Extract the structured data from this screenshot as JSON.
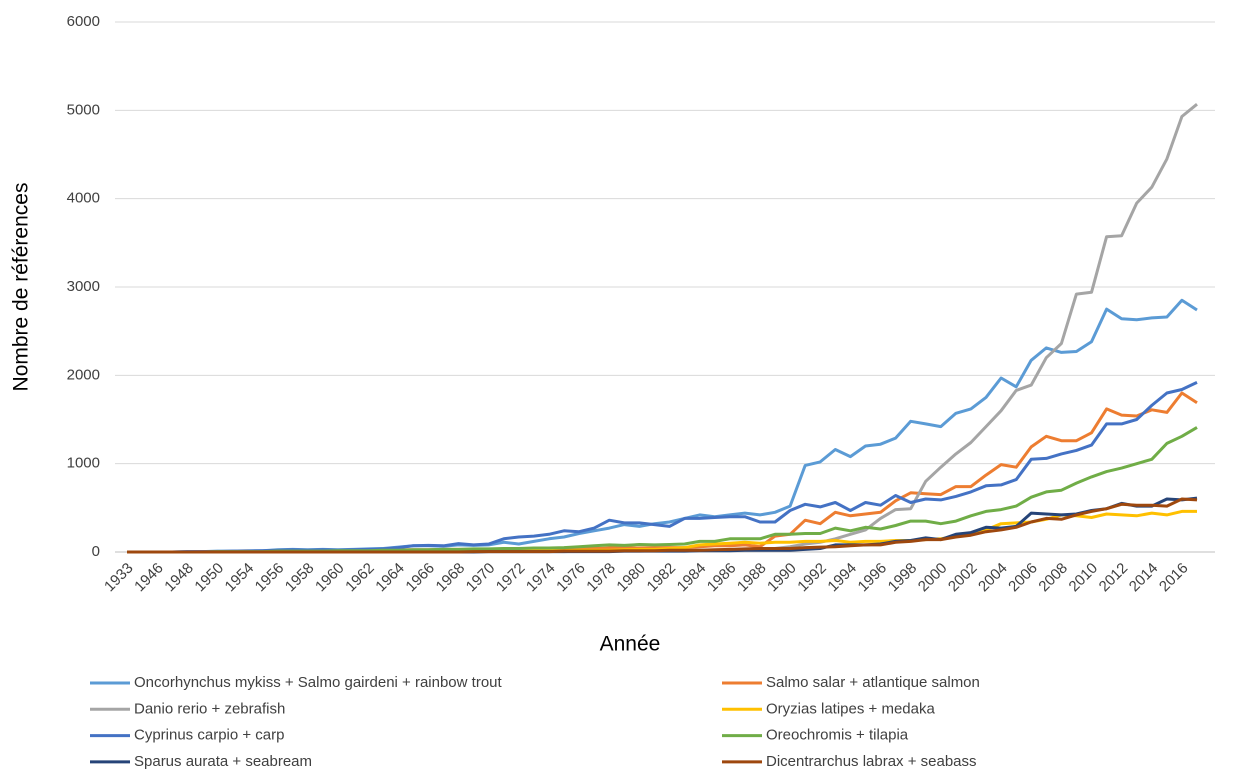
{
  "chart_data": {
    "type": "line",
    "x_label": "Année",
    "y_label": "Nombre de références",
    "categories": [
      "1933",
      null,
      "1946",
      null,
      "1948",
      null,
      "1950",
      null,
      "1954",
      null,
      "1956",
      null,
      "1958",
      null,
      "1960",
      null,
      "1962",
      null,
      "1964",
      null,
      "1966",
      null,
      "1968",
      null,
      "1970",
      null,
      "1972",
      null,
      "1974",
      null,
      "1976",
      null,
      "1978",
      null,
      "1980",
      null,
      "1982",
      null,
      "1984",
      null,
      "1986",
      null,
      "1988",
      null,
      "1990",
      null,
      "1992",
      null,
      "1994",
      null,
      "1996",
      null,
      "1998",
      null,
      "2000",
      null,
      "2002",
      null,
      "2004",
      null,
      "2006",
      null,
      "2008",
      null,
      "2010",
      null,
      "2012",
      null,
      "2014",
      null,
      "2016",
      null
    ],
    "series": [
      {
        "name": "Oncorhynchus mykiss + Salmo gairdeni + rainbow trout",
        "color": "#5b9bd5",
        "values": [
          0,
          0,
          0,
          0,
          5,
          5,
          10,
          10,
          15,
          15,
          25,
          30,
          25,
          30,
          25,
          30,
          35,
          40,
          55,
          70,
          70,
          65,
          80,
          75,
          80,
          110,
          90,
          120,
          150,
          170,
          210,
          240,
          270,
          310,
          290,
          320,
          340,
          380,
          420,
          400,
          420,
          440,
          420,
          450,
          520,
          980,
          1020,
          1160,
          1080,
          1200,
          1220,
          1290,
          1480,
          1450,
          1420,
          1570,
          1620,
          1750,
          1970,
          1870,
          2170,
          2310,
          2260,
          2270,
          2380,
          2750,
          2640,
          2630,
          2650,
          2660,
          2850,
          2740
        ]
      },
      {
        "name": "Salmo salar + atlantique salmon",
        "color": "#ed7d31",
        "values": [
          0,
          0,
          0,
          0,
          0,
          5,
          5,
          5,
          10,
          10,
          10,
          10,
          15,
          15,
          15,
          20,
          20,
          20,
          25,
          25,
          25,
          30,
          30,
          30,
          30,
          35,
          35,
          35,
          35,
          40,
          40,
          40,
          45,
          45,
          45,
          50,
          50,
          50,
          60,
          70,
          70,
          80,
          60,
          180,
          200,
          360,
          320,
          450,
          410,
          430,
          450,
          580,
          670,
          660,
          650,
          740,
          740,
          870,
          990,
          960,
          1190,
          1310,
          1260,
          1260,
          1350,
          1620,
          1550,
          1540,
          1610,
          1580,
          1800,
          1690
        ]
      },
      {
        "name": "Danio rerio + zebrafish",
        "color": "#a5a5a5",
        "values": [
          0,
          0,
          0,
          0,
          0,
          0,
          0,
          0,
          0,
          0,
          0,
          0,
          0,
          0,
          0,
          0,
          0,
          0,
          0,
          0,
          5,
          5,
          5,
          5,
          5,
          5,
          5,
          5,
          5,
          5,
          10,
          10,
          10,
          10,
          10,
          15,
          15,
          15,
          20,
          20,
          20,
          25,
          30,
          40,
          60,
          90,
          110,
          150,
          200,
          250,
          380,
          480,
          490,
          800,
          960,
          1110,
          1240,
          1420,
          1600,
          1830,
          1890,
          2200,
          2360,
          2920,
          2940,
          3570,
          3580,
          3950,
          4130,
          4450,
          4930,
          5070
        ]
      },
      {
        "name": "Oryzias latipes + medaka",
        "color": "#ffc000",
        "values": [
          0,
          0,
          0,
          0,
          0,
          0,
          0,
          0,
          0,
          0,
          0,
          0,
          0,
          0,
          0,
          5,
          5,
          5,
          5,
          5,
          5,
          5,
          10,
          10,
          10,
          10,
          10,
          15,
          15,
          15,
          20,
          20,
          20,
          25,
          30,
          30,
          40,
          50,
          80,
          90,
          100,
          110,
          100,
          110,
          110,
          120,
          120,
          130,
          110,
          120,
          120,
          130,
          130,
          140,
          150,
          180,
          200,
          250,
          320,
          330,
          340,
          370,
          420,
          410,
          390,
          430,
          420,
          410,
          440,
          420,
          460,
          460
        ]
      },
      {
        "name": "Cyprinus carpio + carp",
        "color": "#4472c4",
        "values": [
          0,
          0,
          0,
          0,
          5,
          5,
          5,
          10,
          10,
          15,
          20,
          25,
          20,
          25,
          20,
          25,
          30,
          35,
          50,
          70,
          75,
          70,
          95,
          80,
          90,
          150,
          170,
          180,
          200,
          240,
          230,
          270,
          360,
          330,
          330,
          310,
          290,
          380,
          380,
          390,
          400,
          400,
          340,
          340,
          470,
          540,
          510,
          560,
          470,
          560,
          530,
          640,
          560,
          600,
          590,
          630,
          680,
          750,
          760,
          820,
          1050,
          1060,
          1110,
          1150,
          1210,
          1450,
          1450,
          1500,
          1660,
          1800,
          1840,
          1920
        ]
      },
      {
        "name": "Oreochromis + tilapia",
        "color": "#70ad47",
        "values": [
          0,
          0,
          0,
          0,
          0,
          0,
          5,
          5,
          5,
          5,
          10,
          10,
          10,
          10,
          15,
          15,
          15,
          20,
          20,
          25,
          25,
          30,
          30,
          35,
          35,
          40,
          40,
          45,
          45,
          50,
          60,
          70,
          80,
          75,
          85,
          80,
          85,
          90,
          120,
          120,
          150,
          150,
          150,
          200,
          200,
          210,
          210,
          270,
          240,
          280,
          260,
          300,
          350,
          350,
          320,
          350,
          410,
          460,
          480,
          520,
          620,
          680,
          700,
          780,
          850,
          910,
          950,
          1000,
          1050,
          1230,
          1310,
          1410
        ]
      },
      {
        "name": "Sparus aurata + seabream",
        "color": "#264478",
        "values": [
          0,
          0,
          0,
          0,
          0,
          0,
          0,
          0,
          0,
          0,
          0,
          0,
          0,
          0,
          0,
          0,
          0,
          0,
          0,
          0,
          0,
          0,
          0,
          0,
          5,
          5,
          5,
          5,
          5,
          5,
          5,
          5,
          5,
          10,
          10,
          10,
          10,
          10,
          15,
          15,
          15,
          20,
          20,
          20,
          20,
          30,
          40,
          80,
          80,
          80,
          90,
          120,
          130,
          160,
          140,
          200,
          220,
          280,
          270,
          290,
          440,
          430,
          420,
          430,
          470,
          490,
          550,
          520,
          520,
          600,
          590,
          610
        ]
      },
      {
        "name": "Dicentrarchus labrax + seabass",
        "color": "#9e480e",
        "values": [
          0,
          0,
          0,
          0,
          0,
          0,
          0,
          0,
          0,
          0,
          0,
          0,
          0,
          0,
          0,
          0,
          0,
          0,
          0,
          0,
          0,
          0,
          0,
          5,
          5,
          5,
          5,
          5,
          5,
          10,
          10,
          10,
          10,
          15,
          15,
          15,
          20,
          20,
          20,
          25,
          30,
          35,
          40,
          40,
          40,
          50,
          55,
          60,
          70,
          80,
          80,
          110,
          120,
          140,
          140,
          170,
          190,
          230,
          250,
          280,
          340,
          380,
          370,
          420,
          460,
          490,
          540,
          530,
          530,
          520,
          600,
          590
        ]
      }
    ],
    "ylim": [
      0,
      6000
    ],
    "yticks": [
      0,
      1000,
      2000,
      3000,
      4000,
      5000,
      6000
    ],
    "grid": true,
    "legend": "bottom"
  }
}
